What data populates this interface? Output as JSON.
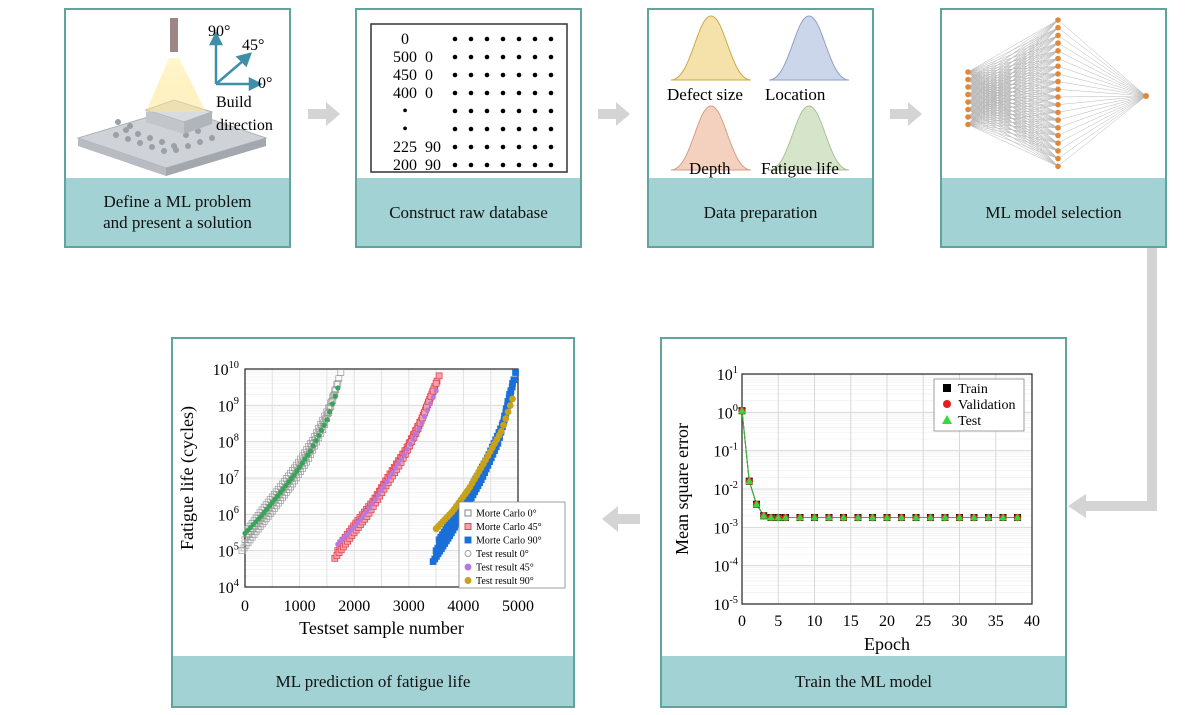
{
  "steps": {
    "define": {
      "caption_line1": "Define a ML problem",
      "caption_line2": "and present a solution",
      "angles": [
        "90°",
        "45°",
        "0°"
      ],
      "build_label_line1": "Build",
      "build_label_line2": "direction"
    },
    "database": {
      "caption": "Construct raw database",
      "col1": [
        "0",
        "500",
        "450",
        "400",
        "•",
        "•",
        "225",
        "200"
      ],
      "col2": [
        "",
        "0",
        "0",
        "0",
        "",
        "",
        "90",
        "90"
      ]
    },
    "preparation": {
      "caption": "Data preparation",
      "dist_labels": [
        "Defect size",
        "Location",
        "Depth",
        "Fatigue life"
      ],
      "dist_colors": [
        "#f3dc9b",
        "#c3cfe6",
        "#f2c8b3",
        "#cfe0c1"
      ]
    },
    "model": {
      "caption": "ML model selection",
      "input_nodes": 8,
      "hidden_nodes": 20,
      "output_nodes": 1,
      "node_color": "#e0883a"
    },
    "train": {
      "caption": "Train the ML model",
      "ylabel": "Mean square error",
      "xlabel": "Epoch",
      "yticks": [
        "10",
        "10",
        "10",
        "10",
        "10",
        "10",
        "10"
      ],
      "yexps": [
        "1",
        "0",
        "-1",
        "-2",
        "-3",
        "-4",
        "-5"
      ],
      "xticks": [
        "0",
        "5",
        "10",
        "15",
        "20",
        "25",
        "30",
        "35",
        "40"
      ],
      "legend": [
        "Train",
        "Validation",
        "Test"
      ]
    },
    "prediction": {
      "caption": "ML prediction of fatigue life",
      "ylabel": "Fatigue life (cycles)",
      "xlabel": "Testset sample number",
      "yticks": [
        "10",
        "10",
        "10",
        "10",
        "10",
        "10",
        "10"
      ],
      "yexps": [
        "10",
        "9",
        "8",
        "7",
        "6",
        "5",
        "4"
      ],
      "xticks": [
        "0",
        "1000",
        "2000",
        "3000",
        "4000",
        "5000"
      ],
      "legend": [
        "Morte Carlo 0°",
        "Morte Carlo 45°",
        "Morte Carlo 90°",
        "Test result 0°",
        "Test result 45°",
        "Test result 90°"
      ]
    }
  },
  "chart_data": [
    {
      "type": "line",
      "title": "Train the ML model",
      "xlabel": "Epoch",
      "ylabel": "Mean square error",
      "yscale": "log",
      "xlim": [
        0,
        40
      ],
      "ylim": [
        1e-05,
        10
      ],
      "series": [
        {
          "name": "Train",
          "x": [
            0,
            1,
            2,
            3,
            4,
            5,
            6,
            8,
            10,
            12,
            14,
            16,
            18,
            20,
            22,
            24,
            26,
            28,
            30,
            32,
            34,
            36,
            38
          ],
          "values": [
            1.1,
            0.016,
            0.004,
            0.002,
            0.0018,
            0.0018,
            0.0018,
            0.0018,
            0.0018,
            0.0018,
            0.0018,
            0.0018,
            0.0018,
            0.0018,
            0.0018,
            0.0018,
            0.0018,
            0.0018,
            0.0018,
            0.0018,
            0.0018,
            0.0018,
            0.0018
          ]
        },
        {
          "name": "Validation",
          "x": [
            0,
            1,
            2,
            3,
            4,
            5,
            6,
            8,
            10,
            12,
            14,
            16,
            18,
            20,
            22,
            24,
            26,
            28,
            30,
            32,
            34,
            36,
            38
          ],
          "values": [
            1.1,
            0.016,
            0.004,
            0.002,
            0.0018,
            0.0018,
            0.0018,
            0.0018,
            0.0018,
            0.0018,
            0.0018,
            0.0018,
            0.0018,
            0.0018,
            0.0018,
            0.0018,
            0.0018,
            0.0018,
            0.0018,
            0.0018,
            0.0018,
            0.0018,
            0.0018
          ]
        },
        {
          "name": "Test",
          "x": [
            0,
            1,
            2,
            3,
            4,
            5,
            6,
            8,
            10,
            12,
            14,
            16,
            18,
            20,
            22,
            24,
            26,
            28,
            30,
            32,
            34,
            36,
            38
          ],
          "values": [
            1.1,
            0.016,
            0.004,
            0.002,
            0.0018,
            0.0018,
            0.0018,
            0.0018,
            0.0018,
            0.0018,
            0.0018,
            0.0018,
            0.0018,
            0.0018,
            0.0018,
            0.0018,
            0.0018,
            0.0018,
            0.0018,
            0.0018,
            0.0018,
            0.0018,
            0.0018
          ]
        }
      ]
    },
    {
      "type": "scatter",
      "title": "ML prediction of fatigue life",
      "xlabel": "Testset sample number",
      "ylabel": "Fatigue life (cycles)",
      "yscale": "log",
      "xlim": [
        0,
        5000
      ],
      "ylim": [
        10000,
        10000000000
      ],
      "series": [
        {
          "name": "Morte Carlo 0°",
          "x": [
            0,
            300,
            600,
            900,
            1200,
            1500,
            1700
          ],
          "values": [
            200000,
            800000,
            3000000,
            12000000,
            60000000,
            500000000,
            4000000000
          ]
        },
        {
          "name": "Morte Carlo 45°",
          "x": [
            1700,
            2000,
            2300,
            2600,
            2900,
            3200,
            3500
          ],
          "values": [
            100000,
            400000,
            1500000,
            8000000,
            40000000,
            300000000,
            4000000000
          ]
        },
        {
          "name": "Morte Carlo 90°",
          "x": [
            3500,
            3800,
            4100,
            4400,
            4700,
            4900
          ],
          "values": [
            100000,
            500000,
            3000000,
            20000000,
            200000000,
            4000000000
          ]
        },
        {
          "name": "Test result 0°",
          "x": [
            0,
            300,
            600,
            900,
            1200,
            1500,
            1700
          ],
          "values": [
            300000,
            900000,
            3200000,
            12000000,
            55000000,
            400000000,
            3000000000
          ]
        },
        {
          "name": "Test result 45°",
          "x": [
            1700,
            2000,
            2300,
            2600,
            2900,
            3200,
            3500
          ],
          "values": [
            150000,
            450000,
            1600000,
            8000000,
            40000000,
            250000000,
            2500000000
          ]
        },
        {
          "name": "Test result 90°",
          "x": [
            3500,
            3800,
            4100,
            4400,
            4700,
            4900
          ],
          "values": [
            400000,
            1200000,
            5000000,
            30000000,
            200000000,
            1500000000
          ]
        }
      ]
    }
  ]
}
